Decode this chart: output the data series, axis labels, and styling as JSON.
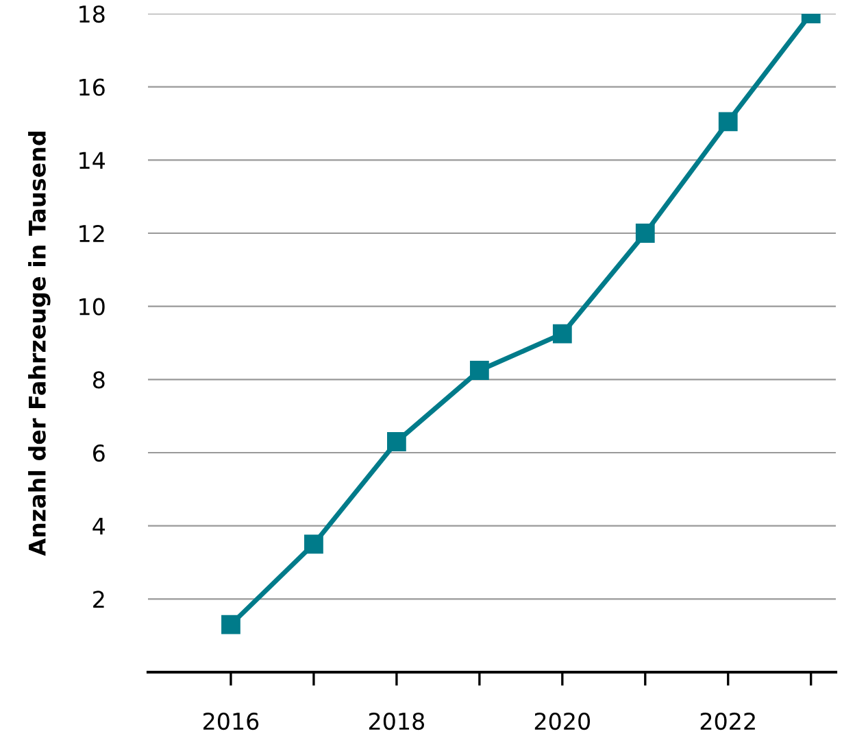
{
  "chart_data": {
    "type": "line",
    "ylabel": "Anzahl der Fahrzeuge in Tausend",
    "x": [
      2016,
      2017,
      2018,
      2019,
      2020,
      2021,
      2022,
      2023
    ],
    "series": [
      {
        "color": "#007b8a",
        "values": [
          1.3,
          3.5,
          6.3,
          8.25,
          9.25,
          12,
          15.05,
          18
        ]
      }
    ],
    "xlim": [
      2015,
      2023.3
    ],
    "xticks": [
      2016,
      {
        "value": 2017,
        "label": null
      },
      2018,
      {
        "value": 2019,
        "label": null
      },
      2020,
      {
        "value": 2021,
        "label": null
      },
      2022,
      {
        "value": 2023,
        "label": null
      }
    ],
    "ylim": [
      0,
      18
    ],
    "yticks": [
      2,
      4,
      6,
      8,
      10,
      12,
      14,
      16,
      18
    ],
    "grid": "y",
    "marker": "square",
    "line_style": "solid"
  }
}
